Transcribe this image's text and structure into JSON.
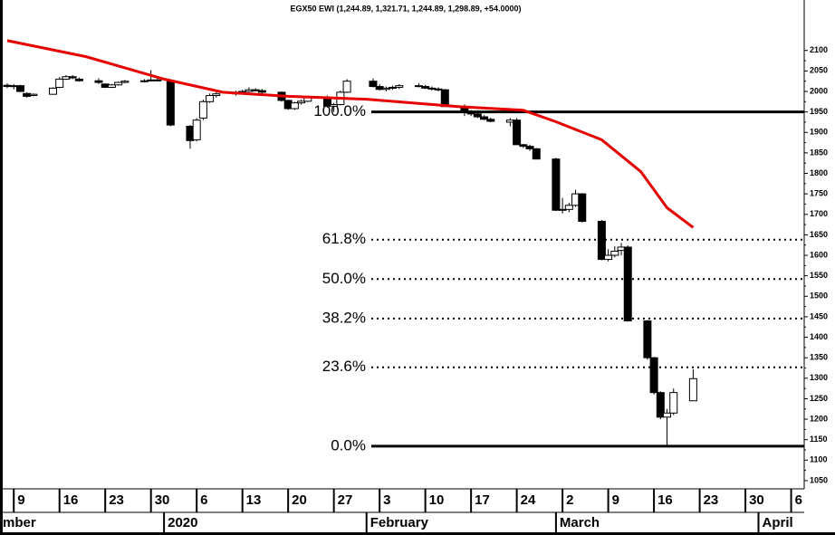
{
  "chart_data": {
    "type": "candlestick",
    "title": "EGX50 EWI (1,244.89, 1,321.71, 1,244.89, 1,298.89, +54.0000)",
    "xlim": [
      "2019-12-08",
      "2020-04-08"
    ],
    "ylim": [
      1030,
      2190
    ],
    "yticks": [
      1050,
      1100,
      1150,
      1200,
      1250,
      1300,
      1350,
      1400,
      1450,
      1500,
      1550,
      1600,
      1650,
      1700,
      1750,
      1800,
      1850,
      1900,
      1950,
      2000,
      2050,
      2100
    ],
    "xticks": [
      {
        "value": "2019-12-09",
        "label": "9"
      },
      {
        "value": "2019-12-16",
        "label": "16"
      },
      {
        "value": "2019-12-23",
        "label": "23"
      },
      {
        "value": "2019-12-30",
        "label": "30"
      },
      {
        "value": "2020-01-06",
        "label": "6"
      },
      {
        "value": "2020-01-13",
        "label": "13"
      },
      {
        "value": "2020-01-20",
        "label": "20"
      },
      {
        "value": "2020-01-27",
        "label": "27"
      },
      {
        "value": "2020-02-03",
        "label": "3"
      },
      {
        "value": "2020-02-10",
        "label": "10"
      },
      {
        "value": "2020-02-17",
        "label": "17"
      },
      {
        "value": "2020-02-24",
        "label": "24"
      },
      {
        "value": "2020-03-02",
        "label": "2"
      },
      {
        "value": "2020-03-09",
        "label": "9"
      },
      {
        "value": "2020-03-16",
        "label": "16"
      },
      {
        "value": "2020-03-23",
        "label": "23"
      },
      {
        "value": "2020-03-30",
        "label": "30"
      },
      {
        "value": "2020-04-06",
        "label": "6"
      }
    ],
    "months": [
      {
        "value": "2019-12-01",
        "label": "mber"
      },
      {
        "value": "2020-01-01",
        "label": "2020"
      },
      {
        "value": "2020-02-01",
        "label": "February"
      },
      {
        "value": "2020-03-01",
        "label": "March"
      },
      {
        "value": "2020-04-01",
        "label": "April"
      }
    ],
    "x": [
      "2019-12-08",
      "2019-12-09",
      "2019-12-10",
      "2019-12-11",
      "2019-12-12",
      "2019-12-15",
      "2019-12-16",
      "2019-12-17",
      "2019-12-18",
      "2019-12-19",
      "2019-12-22",
      "2019-12-23",
      "2019-12-24",
      "2019-12-25",
      "2019-12-26",
      "2019-12-29",
      "2019-12-30",
      "2019-12-31",
      "2020-01-02",
      "2020-01-05",
      "2020-01-06",
      "2020-01-07",
      "2020-01-08",
      "2020-01-09",
      "2020-01-12",
      "2020-01-13",
      "2020-01-14",
      "2020-01-15",
      "2020-01-16",
      "2020-01-19",
      "2020-01-20",
      "2020-01-21",
      "2020-01-22",
      "2020-01-23",
      "2020-01-26",
      "2020-01-27",
      "2020-01-28",
      "2020-01-29",
      "2020-02-02",
      "2020-02-03",
      "2020-02-04",
      "2020-02-05",
      "2020-02-06",
      "2020-02-09",
      "2020-02-10",
      "2020-02-11",
      "2020-02-12",
      "2020-02-13",
      "2020-02-16",
      "2020-02-17",
      "2020-02-18",
      "2020-02-19",
      "2020-02-20",
      "2020-02-23",
      "2020-02-24",
      "2020-02-25",
      "2020-02-26",
      "2020-02-27",
      "2020-03-01",
      "2020-03-02",
      "2020-03-03",
      "2020-03-04",
      "2020-03-05",
      "2020-03-08",
      "2020-03-09",
      "2020-03-10",
      "2020-03-11",
      "2020-03-12",
      "2020-03-15",
      "2020-03-16",
      "2020-03-17",
      "2020-03-18",
      "2020-03-19",
      "2020-03-22"
    ],
    "open": [
      2015,
      2012,
      2014,
      1995,
      1990,
      1993,
      2010,
      2030,
      2036,
      2030,
      2026,
      2018,
      2010,
      2016,
      2022,
      2025,
      2026,
      2028,
      2025,
      1915,
      1882,
      1935,
      1975,
      1990,
      1994,
      1998,
      2000,
      2004,
      2002,
      1998,
      1978,
      1958,
      1972,
      1976,
      1986,
      1964,
      1968,
      1998,
      2025,
      2012,
      2005,
      2008,
      2010,
      2014,
      2012,
      2008,
      2006,
      2004,
      1963,
      1950,
      1945,
      1938,
      1932,
      1925,
      1930,
      1870,
      1866,
      1860,
      1835,
      1710,
      1712,
      1722,
      1750,
      1683,
      1590,
      1600,
      1612,
      1620,
      1440,
      1350,
      1265,
      1205,
      1215,
      1244.89
    ],
    "high": [
      2020,
      2018,
      2016,
      1998,
      1995,
      2010,
      2035,
      2040,
      2040,
      2034,
      2032,
      2020,
      2018,
      2024,
      2028,
      2030,
      2052,
      2032,
      2028,
      1918,
      1935,
      1980,
      1995,
      1998,
      2002,
      2004,
      2010,
      2008,
      2006,
      2000,
      1980,
      1975,
      1980,
      1990,
      1990,
      1972,
      2002,
      2030,
      2032,
      2018,
      2012,
      2014,
      2018,
      2020,
      2016,
      2012,
      2010,
      2006,
      1968,
      1955,
      1948,
      1942,
      1936,
      1935,
      1935,
      1872,
      1870,
      1862,
      1838,
      1740,
      1728,
      1760,
      1752,
      1686,
      1615,
      1622,
      1630,
      1624,
      1442,
      1352,
      1268,
      1225,
      1275,
      1321.71
    ],
    "low": [
      2008,
      2005,
      1998,
      1985,
      1988,
      1992,
      2008,
      2028,
      2030,
      2024,
      2018,
      2008,
      2008,
      2014,
      2020,
      2022,
      2024,
      2024,
      1915,
      1860,
      1878,
      1930,
      1972,
      1985,
      1990,
      1995,
      1998,
      2000,
      1995,
      1975,
      1955,
      1955,
      1968,
      1974,
      1960,
      1950,
      1966,
      1996,
      2010,
      2002,
      2000,
      2004,
      2006,
      2010,
      2006,
      2002,
      2000,
      1963,
      1940,
      1940,
      1935,
      1930,
      1925,
      1915,
      1870,
      1862,
      1855,
      1835,
      1708,
      1702,
      1705,
      1718,
      1680,
      1588,
      1585,
      1595,
      1600,
      1438,
      1345,
      1260,
      1200,
      1134,
      1210,
      1244.89
    ],
    "close": [
      2012,
      2014,
      2000,
      1988,
      1993,
      2008,
      2030,
      2036,
      2033,
      2026,
      2022,
      2010,
      2016,
      2022,
      2025,
      2026,
      2028,
      2026,
      1918,
      1880,
      1930,
      1975,
      1990,
      1994,
      1998,
      2000,
      2004,
      2002,
      1998,
      1978,
      1958,
      1972,
      1976,
      1986,
      1964,
      1968,
      1998,
      2025,
      2012,
      2005,
      2008,
      2010,
      2014,
      2012,
      2008,
      2006,
      2004,
      1963,
      1950,
      1945,
      1938,
      1932,
      1927,
      1930,
      1870,
      1866,
      1860,
      1835,
      1710,
      1712,
      1722,
      1750,
      1683,
      1590,
      1600,
      1610,
      1620,
      1440,
      1350,
      1265,
      1205,
      1215,
      1265,
      1298.89
    ],
    "up_color": "#ffffff",
    "down_color": "#000000",
    "moving_average": {
      "color": "#e60000",
      "x": [
        "2019-12-08",
        "2019-12-20",
        "2020-01-01",
        "2020-01-10",
        "2020-01-20",
        "2020-02-01",
        "2020-02-15",
        "2020-02-25",
        "2020-03-01",
        "2020-03-08",
        "2020-03-14",
        "2020-03-18",
        "2020-03-22"
      ],
      "values": [
        2124,
        2085,
        2030,
        1998,
        1988,
        1981,
        1963,
        1954,
        1926,
        1882,
        1804,
        1716,
        1668
      ]
    },
    "fib_levels": [
      {
        "value": 1950,
        "label": "100.0%",
        "style": "solid"
      },
      {
        "value": 1638.3,
        "label": "61.8%",
        "style": "dotted"
      },
      {
        "value": 1542,
        "label": "50.0%",
        "style": "dotted"
      },
      {
        "value": 1445.7,
        "label": "38.2%",
        "style": "dotted"
      },
      {
        "value": 1326.6,
        "label": "23.6%",
        "style": "dotted"
      },
      {
        "value": 1134,
        "label": "0.0%",
        "style": "solid"
      }
    ]
  }
}
